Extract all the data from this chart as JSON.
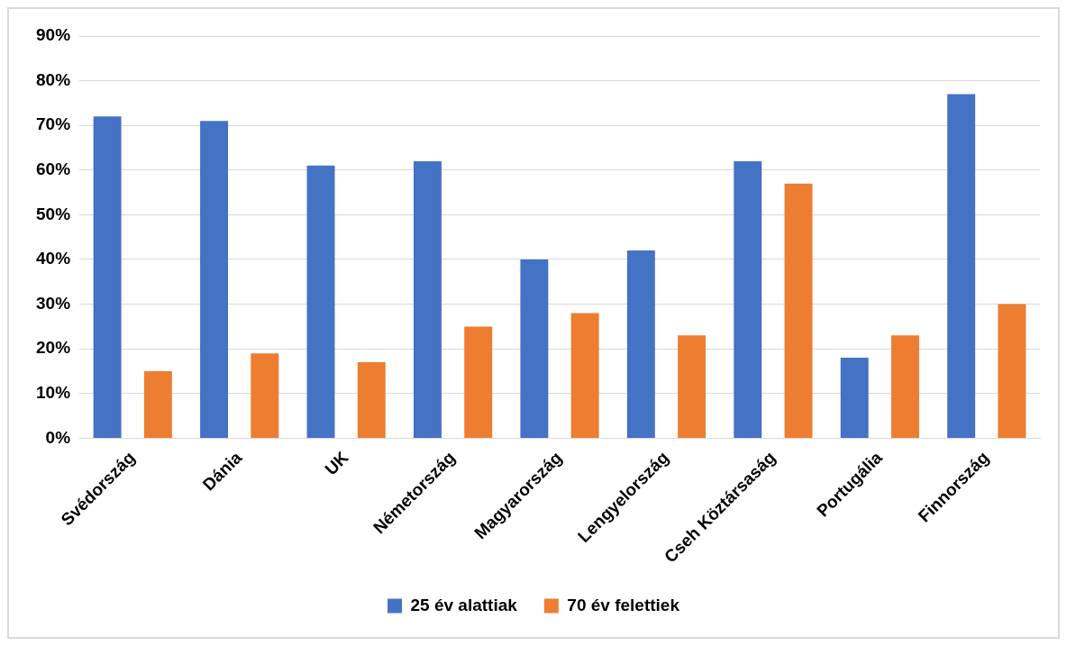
{
  "chart_data": {
    "type": "bar",
    "categories": [
      "Svédország",
      "Dánia",
      "UK",
      "Németország",
      "Magyarország",
      "Lengyelország",
      "Cseh Köztársaság",
      "Portugália",
      "Finnország"
    ],
    "series": [
      {
        "name": "25 év alattiak",
        "color": "#4472c4",
        "values": [
          72,
          71,
          61,
          62,
          40,
          42,
          62,
          18,
          77
        ]
      },
      {
        "name": "70 év felettiek",
        "color": "#ed7d31",
        "values": [
          15,
          19,
          17,
          25,
          28,
          23,
          57,
          23,
          30
        ]
      }
    ],
    "ylim": [
      0,
      90
    ],
    "yticks": [
      {
        "value": 0,
        "label": "0%"
      },
      {
        "value": 10,
        "label": "10%"
      },
      {
        "value": 20,
        "label": "20%"
      },
      {
        "value": 30,
        "label": "30%"
      },
      {
        "value": 40,
        "label": "40%"
      },
      {
        "value": 50,
        "label": "50%"
      },
      {
        "value": 60,
        "label": "60%"
      },
      {
        "value": 70,
        "label": "70%"
      },
      {
        "value": 80,
        "label": "80%"
      },
      {
        "value": 90,
        "label": "90%"
      }
    ],
    "grid": "y",
    "legend": "bottom"
  }
}
